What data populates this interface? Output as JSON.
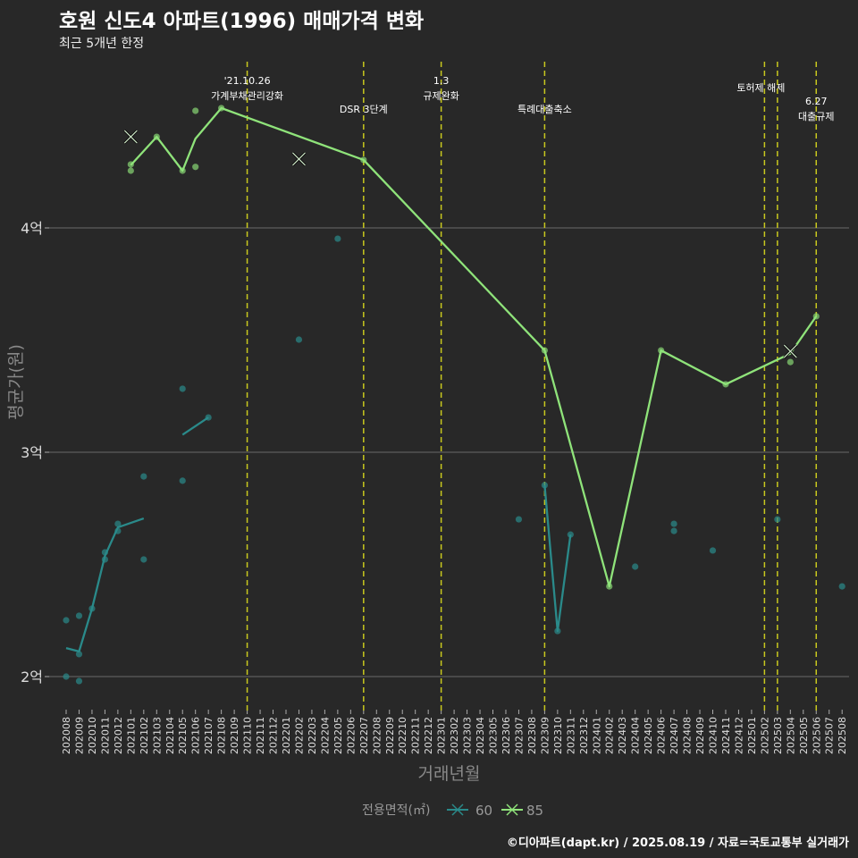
{
  "chart_data": {
    "type": "line",
    "title": "호원 신도4 아파트(1996) 매매가격 변화",
    "subtitle": "최근 5개년 한정",
    "xlabel": "거래년월",
    "ylabel": "평균가(원)",
    "ylim": [
      1.88,
      4.8
    ],
    "y_unit": "억",
    "yticks": [
      {
        "value": 2,
        "label": "2억"
      },
      {
        "value": 3,
        "label": "3억"
      },
      {
        "value": 4,
        "label": "4억"
      }
    ],
    "grid": true,
    "x_categories": [
      "202008",
      "202009",
      "202010",
      "202011",
      "202012",
      "202101",
      "202102",
      "202103",
      "202104",
      "202105",
      "202106",
      "202107",
      "202108",
      "202109",
      "202110",
      "202111",
      "202112",
      "202201",
      "202202",
      "202203",
      "202204",
      "202205",
      "202206",
      "202207",
      "202208",
      "202209",
      "202210",
      "202211",
      "202212",
      "202301",
      "202302",
      "202303",
      "202304",
      "202305",
      "202306",
      "202307",
      "202308",
      "202309",
      "202310",
      "202311",
      "202312",
      "202401",
      "202402",
      "202403",
      "202404",
      "202405",
      "202406",
      "202407",
      "202408",
      "202409",
      "202410",
      "202411",
      "202412",
      "202501",
      "202502",
      "202503",
      "202504",
      "202505",
      "202506",
      "202507",
      "202508"
    ],
    "legend": {
      "title": "전용면적(㎡)",
      "position": "bottom",
      "entries": [
        "60",
        "85"
      ]
    },
    "series": [
      {
        "name": "60",
        "color": "#2a8a8a",
        "line_segments": [
          [
            [
              "202008",
              2.127
            ],
            [
              "202009",
              2.112
            ],
            [
              "202010",
              2.303
            ],
            [
              "202011",
              2.538
            ],
            [
              "202012",
              2.665
            ],
            [
              "202102",
              2.705
            ]
          ],
          [
            [
              "202105",
              3.078
            ],
            [
              "202107",
              3.155
            ]
          ],
          [
            [
              "202309",
              2.853
            ],
            [
              "202310",
              2.203
            ],
            [
              "202311",
              2.633
            ]
          ]
        ],
        "points": [
          [
            "202008",
            2.251
          ],
          [
            "202008",
            2.0
          ],
          [
            "202009",
            2.271
          ],
          [
            "202009",
            2.1
          ],
          [
            "202009",
            1.98
          ],
          [
            "202010",
            2.303
          ],
          [
            "202011",
            2.554
          ],
          [
            "202011",
            2.522
          ],
          [
            "202012",
            2.681
          ],
          [
            "202012",
            2.649
          ],
          [
            "202102",
            2.892
          ],
          [
            "202102",
            2.522
          ],
          [
            "202105",
            3.283
          ],
          [
            "202105",
            2.873
          ],
          [
            "202107",
            3.155
          ],
          [
            "202202",
            3.502
          ],
          [
            "202205",
            3.952
          ],
          [
            "202307",
            2.701
          ],
          [
            "202309",
            2.853
          ],
          [
            "202310",
            2.203
          ],
          [
            "202311",
            2.633
          ],
          [
            "202404",
            2.49
          ],
          [
            "202407",
            2.681
          ],
          [
            "202407",
            2.649
          ],
          [
            "202410",
            2.562
          ],
          [
            "202503",
            2.701
          ],
          [
            "202508",
            2.402
          ]
        ]
      },
      {
        "name": "85",
        "color": "#8fe37a",
        "line_segments": [
          [
            [
              "202101",
              4.28
            ],
            [
              "202103",
              4.406
            ],
            [
              "202105",
              4.255
            ],
            [
              "202106",
              4.398
            ],
            [
              "202108",
              4.534
            ],
            [
              "202207",
              4.303
            ],
            [
              "202309",
              3.454
            ],
            [
              "202402",
              2.402
            ],
            [
              "202406",
              3.454
            ],
            [
              "202411",
              3.303
            ],
            [
              "202504",
              3.44
            ],
            [
              "202506",
              3.606
            ]
          ]
        ],
        "points": [
          [
            "202101",
            4.283
          ],
          [
            "202101",
            4.255
          ],
          [
            "202103",
            4.406
          ],
          [
            "202105",
            4.255
          ],
          [
            "202106",
            4.522
          ],
          [
            "202106",
            4.272
          ],
          [
            "202108",
            4.534
          ],
          [
            "202207",
            4.303
          ],
          [
            "202309",
            3.454
          ],
          [
            "202402",
            2.402
          ],
          [
            "202406",
            3.454
          ],
          [
            "202411",
            3.303
          ],
          [
            "202504",
            3.402
          ],
          [
            "202506",
            3.606
          ]
        ]
      }
    ],
    "x_markers": [
      [
        "202101",
        4.406
      ],
      [
        "202202",
        4.307
      ],
      [
        "202504",
        3.45
      ]
    ],
    "events": [
      {
        "month": "202110",
        "lines": [
          "'21.10.26",
          "가계부채관리강화"
        ]
      },
      {
        "month": "202207",
        "lines": [
          "DSR 3단계"
        ]
      },
      {
        "month": "202301",
        "lines": [
          "1.3",
          "규제완화"
        ]
      },
      {
        "month": "202309",
        "lines": [
          "특례대출축소"
        ]
      },
      {
        "month": "202502",
        "lines": [
          "토허제 해제"
        ]
      },
      {
        "month": "202503",
        "lines": []
      },
      {
        "month": "202506",
        "lines": [
          "6.27",
          "대출규제"
        ]
      }
    ],
    "event_line_color": "#c8c81e"
  },
  "caption": "©디아파트(dapt.kr) / 2025.08.19 / 자료=국토교통부 실거래가"
}
